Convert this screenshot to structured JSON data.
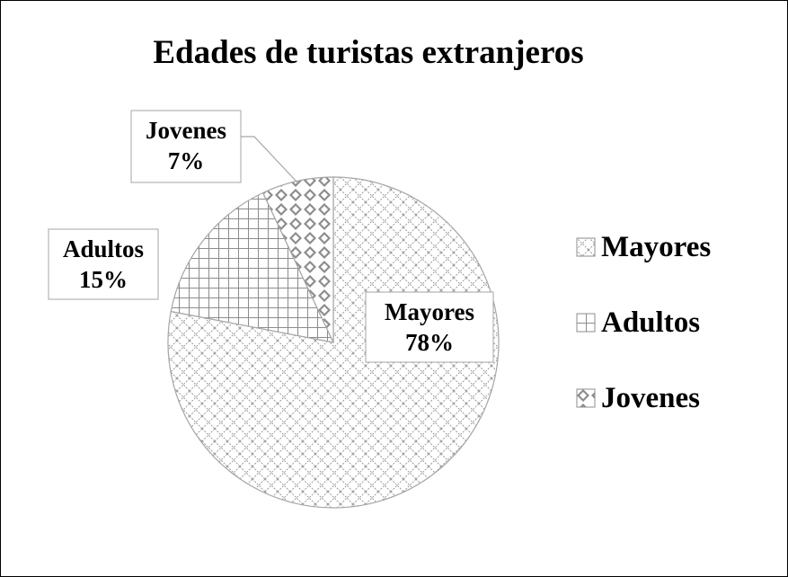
{
  "chart_data": {
    "type": "pie",
    "title": "Edades de turistas extranjeros",
    "categories": [
      "Mayores",
      "Adultos",
      "Jovenes"
    ],
    "values": [
      78,
      15,
      7
    ],
    "data_labels": [
      {
        "name": "Mayores",
        "value": "78%"
      },
      {
        "name": "Adultos",
        "value": "15%"
      },
      {
        "name": "Jovenes",
        "value": "7%"
      }
    ],
    "legend": {
      "position": "right",
      "entries": [
        "Mayores",
        "Adultos",
        "Jovenes"
      ]
    },
    "patterns": [
      "diagonal-crosshatch",
      "grid",
      "diamond-dots"
    ],
    "colors": {
      "fill": "#ffffff",
      "pattern": "#8c8c8c",
      "edge": "#a6a6a6",
      "text": "#000000"
    }
  }
}
